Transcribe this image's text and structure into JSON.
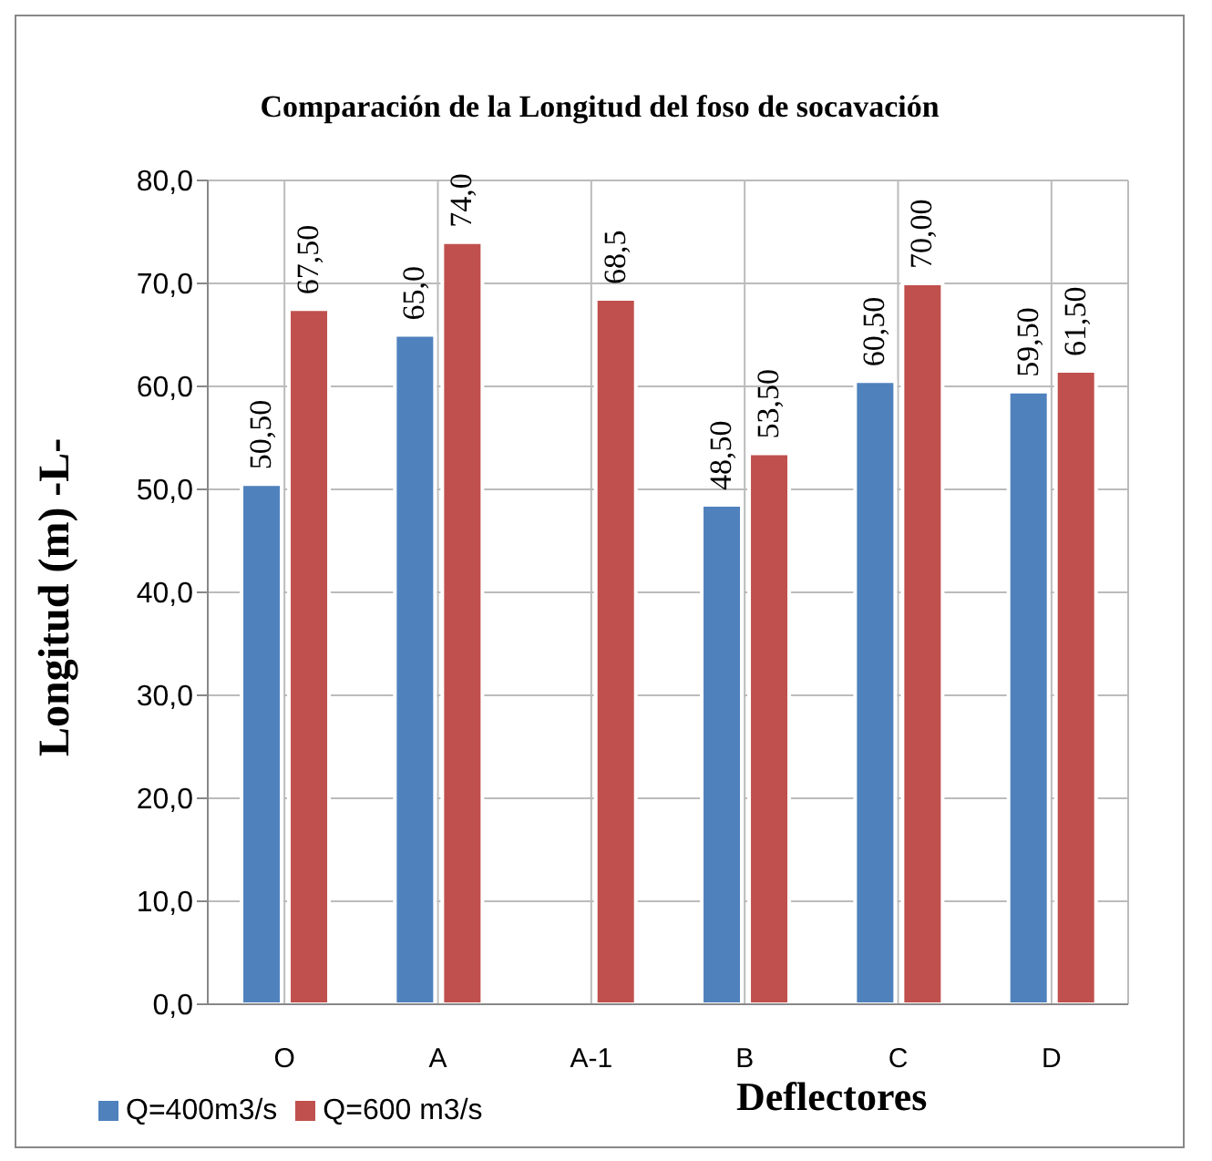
{
  "chart_data": {
    "type": "bar",
    "title": "Comparación de la Longitud del foso de socavación",
    "xlabel": "Deflectores",
    "ylabel": "Longitud (m) -L-",
    "categories": [
      "O",
      "A",
      "A-1",
      "B",
      "C",
      "D"
    ],
    "series": [
      {
        "name": "Q=400m3/s",
        "color": "#4f81bd",
        "values": [
          50.5,
          65,
          null,
          48.5,
          60.5,
          59.5
        ],
        "value_labels": [
          "50,50",
          "65,0",
          null,
          "48,50",
          "60,50",
          "59,50"
        ]
      },
      {
        "name": "Q=600 m3/s",
        "color": "#c0504d",
        "values": [
          67.5,
          74,
          68.5,
          53.5,
          70,
          61.5
        ],
        "value_labels": [
          "67,50",
          "74,0",
          "68,5",
          "53,50",
          "70,00",
          "61,50"
        ]
      }
    ],
    "ylim": [
      0,
      80
    ],
    "yticks": [
      {
        "value": 0,
        "label": "0,0"
      },
      {
        "value": 10,
        "label": "10,0"
      },
      {
        "value": 20,
        "label": "20,0"
      },
      {
        "value": 30,
        "label": "30,0"
      },
      {
        "value": 40,
        "label": "40,0"
      },
      {
        "value": 50,
        "label": "50,0"
      },
      {
        "value": 60,
        "label": "60,0"
      },
      {
        "value": 70,
        "label": "70,0"
      },
      {
        "value": 80,
        "label": "80,0"
      }
    ],
    "grid": true,
    "legend": "bottom left"
  }
}
